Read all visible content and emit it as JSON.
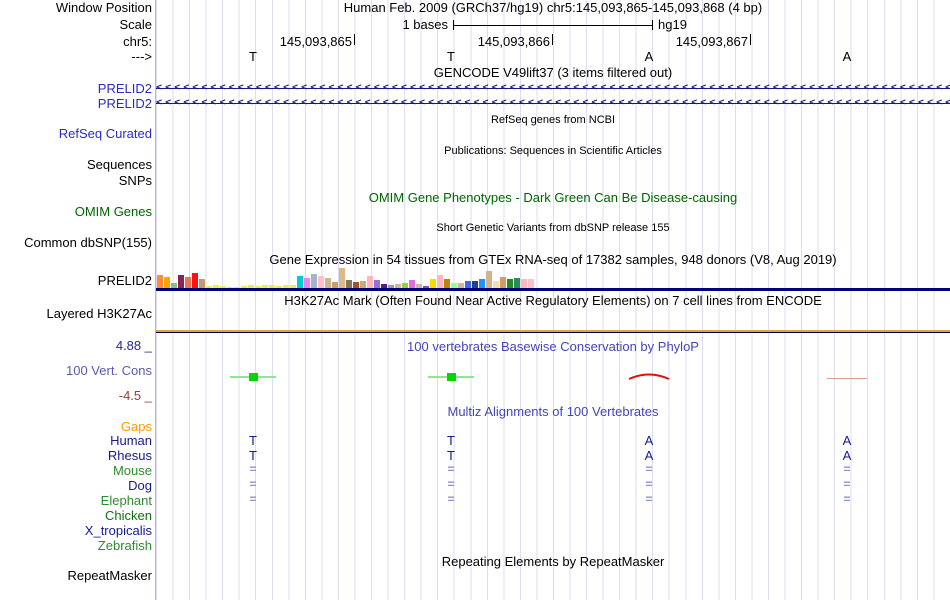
{
  "header": {
    "title": "Human Feb. 2009 (GRCh37/hg19)   chr5:145,093,865-145,093,868 (4 bp)"
  },
  "ruler": {
    "scale_label": "1 bases",
    "assembly": "hg19",
    "chrom_positions": [
      "145,093,865",
      "145,093,866",
      "145,093,867"
    ],
    "bases": [
      "T",
      "T",
      "A",
      "A"
    ]
  },
  "labels": {
    "window_position": "Window Position",
    "scale": "Scale",
    "chromosome": "chr5:",
    "direction": "--->",
    "gencode_gene_1": "PRELID2",
    "gencode_gene_2": "PRELID2",
    "refseq_curated": "RefSeq Curated",
    "sequences": "Sequences",
    "snps": "SNPs",
    "omim_genes": "OMIM Genes",
    "common_dbsnp": "Common dbSNP(155)",
    "gtex_gene": "PRELID2",
    "layered_h3k27ac": "Layered H3K27Ac",
    "cons_scale_max": "4.88 _",
    "cons_track": "100 Vert. Cons",
    "cons_scale_min": "-4.5 _",
    "gaps": "Gaps",
    "human": "Human",
    "rhesus": "Rhesus",
    "mouse": "Mouse",
    "dog": "Dog",
    "elephant": "Elephant",
    "chicken": "Chicken",
    "x_tropicalis": "X_tropicalis",
    "zebrafish": "Zebrafish",
    "repeatmasker": "RepeatMasker"
  },
  "titles": {
    "gencode": "GENCODE V49lift37 (3 items filtered out)",
    "refseq": "RefSeq genes from NCBI",
    "publications": "Publications: Sequences in Scientific Articles",
    "omim": "OMIM Gene Phenotypes - Dark Green Can Be Disease-causing",
    "dbsnp": "Short Genetic Variants from dbSNP release 155",
    "gtex": "Gene Expression in 54 tissues from GTEx RNA-seq of 17382 samples, 948 donors (V8, Aug 2019)",
    "h3k27ac": "H3K27Ac Mark (Often Found Near Active Regulatory Elements) on 7 cell lines from ENCODE",
    "phylop": "100 vertebrates Basewise Conservation by PhyloP",
    "multiz": "Multiz Alignments of 100 Vertebrates",
    "repeat": "Repeating Elements by RepeatMasker"
  },
  "gencode": {
    "arrow_char": "<",
    "arrow_count": 88
  },
  "multiz": {
    "human": [
      "T",
      "T",
      "A",
      "A"
    ],
    "rhesus": [
      "T",
      "T",
      "A",
      "A"
    ],
    "mouse": [
      "=",
      "=",
      "=",
      "="
    ],
    "dog": [
      "=",
      "=",
      "=",
      "="
    ],
    "elephant": [
      "=",
      "=",
      "=",
      "="
    ]
  },
  "gtex": {
    "bars": [
      {
        "c": "#FF8B3A",
        "h": 13
      },
      {
        "c": "#FFA500",
        "h": 11
      },
      {
        "c": "#8FBC8F",
        "h": 5
      },
      {
        "c": "#8B2252",
        "h": 13
      },
      {
        "c": "#E9745A",
        "h": 11
      },
      {
        "c": "#FF1111",
        "h": 15
      },
      {
        "c": "#C49A6C",
        "h": 9
      },
      {
        "c": "#EDED4F",
        "h": 2
      },
      {
        "c": "#EDED4F",
        "h": 3
      },
      {
        "c": "#EDED4F",
        "h": 2
      },
      {
        "c": "#EDED4F",
        "h": 1
      },
      {
        "c": "#EDED4F",
        "h": 1
      },
      {
        "c": "#EDED4F",
        "h": 2
      },
      {
        "c": "#EDED4F",
        "h": 3
      },
      {
        "c": "#EDED4F",
        "h": 2
      },
      {
        "c": "#EDED4F",
        "h": 3
      },
      {
        "c": "#EDED4F",
        "h": 3
      },
      {
        "c": "#EDED4F",
        "h": 2
      },
      {
        "c": "#EDED4F",
        "h": 3
      },
      {
        "c": "#EDED4F",
        "h": 3
      },
      {
        "c": "#00CDCD",
        "h": 12
      },
      {
        "c": "#EE82EE",
        "h": 10
      },
      {
        "c": "#A2B5CD",
        "h": 14
      },
      {
        "c": "#FFC0CB",
        "h": 12
      },
      {
        "c": "#D2B48C",
        "h": 10
      },
      {
        "c": "#C8A165",
        "h": 6
      },
      {
        "c": "#DEB887",
        "h": 20
      },
      {
        "c": "#8B7355",
        "h": 8
      },
      {
        "c": "#A0522D",
        "h": 6
      },
      {
        "c": "#CDAA7D",
        "h": 7
      },
      {
        "c": "#FFB6C1",
        "h": 12
      },
      {
        "c": "#9370DB",
        "h": 8
      },
      {
        "c": "#551A8B",
        "h": 4
      },
      {
        "c": "#9C9C9C",
        "h": 3
      },
      {
        "c": "#CDB79E",
        "h": 4
      },
      {
        "c": "#9ACD32",
        "h": 5
      },
      {
        "c": "#DA70D6",
        "h": 8
      },
      {
        "c": "#CDB79E",
        "h": 4
      },
      {
        "c": "#6A5ACD",
        "h": 2
      },
      {
        "c": "#FFD700",
        "h": 9
      },
      {
        "c": "#FFB6C1",
        "h": 13
      },
      {
        "c": "#B8860B",
        "h": 9
      },
      {
        "c": "#98FB98",
        "h": 5
      },
      {
        "c": "#CDB79E",
        "h": 5
      },
      {
        "c": "#4169E1",
        "h": 7
      },
      {
        "c": "#27408B",
        "h": 7
      },
      {
        "c": "#1E90FF",
        "h": 9
      },
      {
        "c": "#D2B48C",
        "h": 17
      },
      {
        "c": "#F5DEB3",
        "h": 7
      },
      {
        "c": "#C8A165",
        "h": 11
      },
      {
        "c": "#228B22",
        "h": 9
      },
      {
        "c": "#2E8B57",
        "h": 10
      },
      {
        "c": "#FFB6C1",
        "h": 9
      },
      {
        "c": "#FFC0CB",
        "h": 9
      }
    ]
  },
  "colors": {
    "track_link_blue": "#2B2BC8",
    "omim_green": "#006400",
    "title_blue": "#4444BB",
    "species_navy": "#151B8D",
    "species_green": "#2E8B2E",
    "chicken_green": "#107010",
    "gaps_orange": "#FF9900",
    "cons_max_blue": "#28288F",
    "cons_min_red": "#993939",
    "gencode_navy": "#151B7E",
    "gtex_baseline_navy": "#000082",
    "h3k27ac_orange": "#E0A13E",
    "marker_green": "#00D800",
    "marker_light_green": "#8FE88F",
    "marker_red": "#DD1111",
    "marker_pink": "#E39898",
    "align_eq_blue": "#8E96CC",
    "grid_lavender": "#DCDCF2",
    "window_edge_pink": "#F2A3A3"
  }
}
